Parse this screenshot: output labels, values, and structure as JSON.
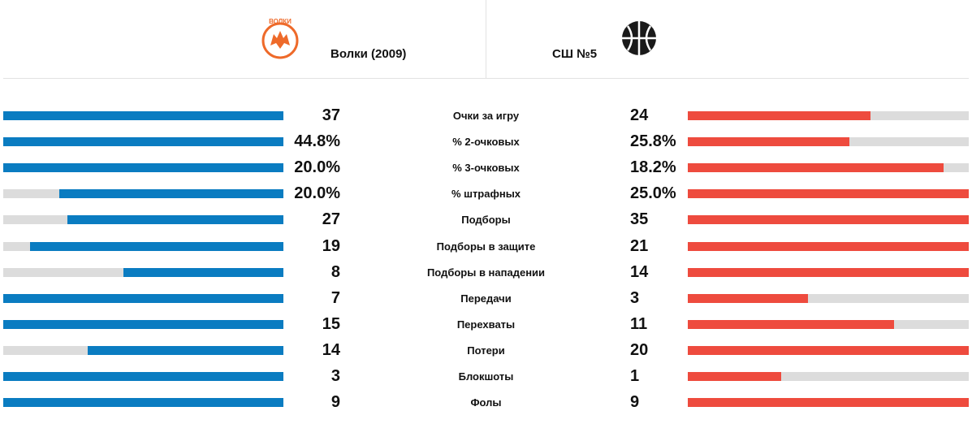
{
  "teams": {
    "home": {
      "name": "Волки (2009)",
      "logo_icon": "wolf-logo-icon",
      "logo_text": "ВОЛКИ",
      "color": "#0a7cc1"
    },
    "away": {
      "name": "СШ №5",
      "logo_icon": "basketball-icon",
      "color": "#ee4b3e"
    }
  },
  "stats": [
    {
      "label": "Очки за игру",
      "home": "37",
      "away": "24",
      "home_fill": 1.0,
      "away_fill": 0.65
    },
    {
      "label": "% 2-очковых",
      "home": "44.8%",
      "away": "25.8%",
      "home_fill": 1.0,
      "away_fill": 0.575
    },
    {
      "label": "% 3-очковых",
      "home": "20.0%",
      "away": "18.2%",
      "home_fill": 1.0,
      "away_fill": 0.91
    },
    {
      "label": "% штрафных",
      "home": "20.0%",
      "away": "25.0%",
      "home_fill": 0.8,
      "away_fill": 1.0
    },
    {
      "label": "Подборы",
      "home": "27",
      "away": "35",
      "home_fill": 0.771,
      "away_fill": 1.0
    },
    {
      "label": "Подборы в защите",
      "home": "19",
      "away": "21",
      "home_fill": 0.905,
      "away_fill": 1.0
    },
    {
      "label": "Подборы в нападении",
      "home": "8",
      "away": "14",
      "home_fill": 0.571,
      "away_fill": 1.0
    },
    {
      "label": "Передачи",
      "home": "7",
      "away": "3",
      "home_fill": 1.0,
      "away_fill": 0.429
    },
    {
      "label": "Перехваты",
      "home": "15",
      "away": "11",
      "home_fill": 1.0,
      "away_fill": 0.733
    },
    {
      "label": "Потери",
      "home": "14",
      "away": "20",
      "home_fill": 0.7,
      "away_fill": 1.0
    },
    {
      "label": "Блокшоты",
      "home": "3",
      "away": "1",
      "home_fill": 1.0,
      "away_fill": 0.333
    },
    {
      "label": "Фолы",
      "home": "9",
      "away": "9",
      "home_fill": 1.0,
      "away_fill": 1.0
    }
  ]
}
